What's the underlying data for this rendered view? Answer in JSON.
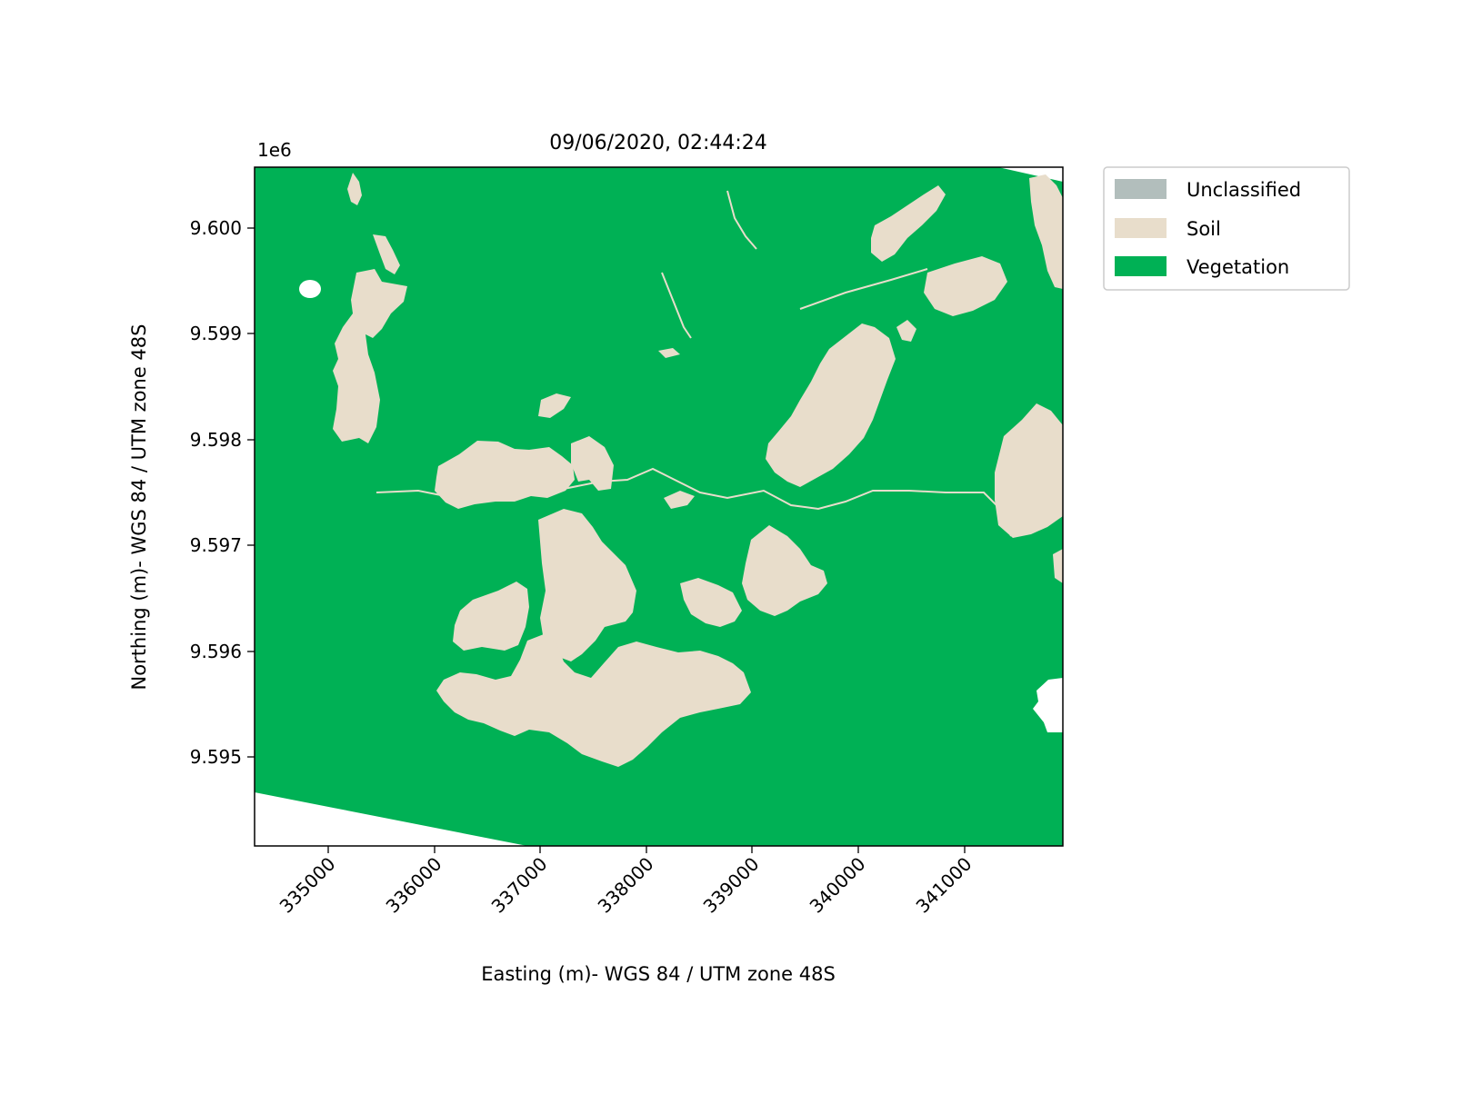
{
  "title": "09/06/2020, 02:44:24",
  "x_axis": {
    "label": "Easting (m)- WGS 84 / UTM zone 48S",
    "range": [
      334300,
      341930
    ],
    "ticks": [
      335000,
      336000,
      337000,
      338000,
      339000,
      340000,
      341000
    ],
    "tick_labels": [
      "335000",
      "336000",
      "337000",
      "338000",
      "339000",
      "340000",
      "341000"
    ],
    "tick_rotation_deg": 45
  },
  "y_axis": {
    "label": "Northing (m)- WGS 84 / UTM zone 48S",
    "offset_label": "1e6",
    "range": [
      9.59417,
      9.60057
    ],
    "ticks": [
      9.595,
      9.596,
      9.597,
      9.598,
      9.599,
      9.6
    ],
    "tick_labels": [
      "9.595",
      "9.596",
      "9.597",
      "9.598",
      "9.599",
      "9.600"
    ]
  },
  "legend": {
    "position": "outside-upper-right",
    "items": [
      {
        "label": "Unclassified",
        "color": "#b2bebc"
      },
      {
        "label": "Soil",
        "color": "#e8ddcb"
      },
      {
        "label": "Vegetation",
        "color": "#00b155"
      }
    ]
  },
  "colors": {
    "vegetation": "#00b155",
    "soil": "#e8ddcb",
    "unclassified": "#b2bebc",
    "nodata": "#ffffff"
  },
  "map_type": "land cover classification raster"
}
